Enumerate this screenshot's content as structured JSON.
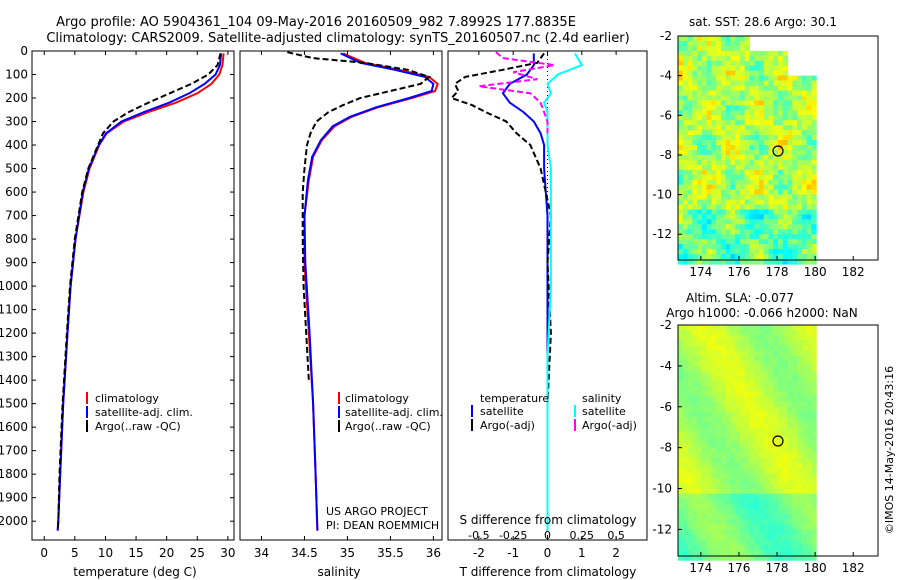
{
  "header": {
    "line1": "Argo profile: AO 5904361_104 09-May-2016 20160509_982 7.8992S 177.8835E",
    "line2": "Climatology: CARS2009. Satellite-adjusted climatology: synTS_20160507.nc (2.4d earlier)"
  },
  "watermark": "©IMOS 14-May-2016 20:43:16",
  "credits": {
    "line1": "US ARGO PROJECT",
    "line2": "PI: DEAN ROEMMICH"
  },
  "colors": {
    "climatology": "#ff0000",
    "satellite": "#0000ff",
    "argo": "#000000",
    "sal_satellite": "#00ffff",
    "sal_argo": "#ff00ff",
    "map_land": "#ffffff"
  },
  "chart_data": [
    {
      "type": "line",
      "xlabel": "temperature (deg C)",
      "xticks": [
        0,
        5,
        10,
        15,
        20,
        25,
        30
      ],
      "xlim": [
        -2,
        31
      ],
      "ylim": [
        2080,
        0
      ],
      "yticks": [
        0,
        100,
        200,
        300,
        400,
        500,
        600,
        700,
        800,
        900,
        1000,
        1100,
        1200,
        1300,
        1400,
        1500,
        1600,
        1700,
        1800,
        1900,
        2000
      ],
      "legend": [
        "climatology",
        "satellite-adj. clim.",
        "Argo(..raw -QC)"
      ],
      "series": [
        {
          "name": "climatology",
          "color": "#ff0000",
          "dash": false,
          "depth": [
            10,
            60,
            100,
            140,
            180,
            220,
            260,
            300,
            350,
            400,
            500,
            600,
            800,
            1000,
            1200,
            1500,
            1800,
            2000,
            2040
          ],
          "x": [
            29.3,
            29.1,
            28.6,
            27.3,
            25.0,
            21.5,
            17.0,
            13.0,
            10.2,
            9.0,
            7.4,
            6.4,
            5.1,
            4.3,
            3.8,
            3.1,
            2.6,
            2.3,
            2.2
          ]
        },
        {
          "name": "satellite-adj. clim.",
          "color": "#0000ff",
          "dash": false,
          "depth": [
            10,
            60,
            100,
            140,
            180,
            220,
            260,
            300,
            350,
            400,
            500,
            600,
            800,
            1000,
            1200,
            1500,
            1800,
            2000,
            2040
          ],
          "x": [
            28.9,
            28.7,
            28.0,
            26.2,
            23.7,
            20.4,
            16.3,
            12.6,
            10.1,
            8.9,
            7.3,
            6.3,
            5.1,
            4.3,
            3.8,
            3.1,
            2.6,
            2.3,
            2.2
          ]
        },
        {
          "name": "Argo(..raw -QC)",
          "color": "#000000",
          "dash": true,
          "depth": [
            10,
            60,
            100,
            140,
            180,
            220,
            260,
            300,
            350,
            400,
            500,
            600,
            800,
            1000,
            1200,
            1500,
            1800,
            2000,
            2040
          ],
          "x": [
            28.8,
            28.3,
            26.8,
            24.0,
            20.5,
            17.0,
            13.8,
            11.3,
            9.6,
            8.8,
            7.2,
            6.2,
            5.0,
            4.2,
            3.7,
            3.0,
            2.5,
            2.3,
            2.2
          ]
        }
      ]
    },
    {
      "type": "line",
      "xlabel": "salinity",
      "xticks": [
        34,
        34.5,
        35,
        35.5,
        36
      ],
      "xlim": [
        33.75,
        36.1
      ],
      "ylim": [
        2080,
        0
      ],
      "legend": [
        "climatology",
        "satellite-adj. clim.",
        "Argo(..raw -QC)"
      ],
      "series": [
        {
          "name": "climatology",
          "color": "#ff0000",
          "dash": false,
          "depth": [
            10,
            50,
            80,
            110,
            140,
            170,
            200,
            240,
            280,
            320,
            380,
            450,
            550,
            700,
            900,
            1200,
            1500,
            1800,
            2040
          ],
          "x": [
            34.95,
            35.2,
            35.6,
            35.95,
            36.05,
            36.02,
            35.75,
            35.35,
            35.05,
            34.85,
            34.7,
            34.6,
            34.55,
            34.5,
            34.5,
            34.55,
            34.6,
            34.63,
            34.65
          ]
        },
        {
          "name": "satellite-adj. clim.",
          "color": "#0000ff",
          "dash": false,
          "depth": [
            10,
            50,
            80,
            110,
            140,
            170,
            200,
            240,
            280,
            320,
            380,
            450,
            550,
            700,
            900,
            1200,
            1500,
            1800,
            2040
          ],
          "x": [
            34.92,
            35.15,
            35.55,
            35.9,
            36.0,
            35.98,
            35.72,
            35.33,
            35.03,
            34.83,
            34.69,
            34.59,
            34.54,
            34.5,
            34.51,
            34.56,
            34.6,
            34.63,
            34.65
          ]
        },
        {
          "name": "Argo(..raw -QC)",
          "color": "#000000",
          "dash": true,
          "depth": [
            5,
            30,
            50,
            80,
            110,
            140,
            170,
            200,
            230,
            260,
            300,
            350,
            400,
            500,
            600,
            800,
            1000,
            1200,
            1400
          ],
          "x": [
            34.3,
            34.6,
            35.2,
            35.7,
            35.95,
            35.85,
            35.5,
            35.15,
            34.95,
            34.78,
            34.64,
            34.57,
            34.53,
            34.5,
            34.48,
            34.48,
            34.49,
            34.52,
            34.55
          ]
        }
      ]
    },
    {
      "type": "line",
      "xlabel": "T difference from climatology",
      "top_xlabel": "S difference from climatology",
      "xticks": [
        -2,
        -1,
        0,
        1,
        2
      ],
      "top_xticks": [
        "-0.5",
        "-0.25",
        "0",
        "0.25",
        "0.5"
      ],
      "xlim": [
        -2.9,
        2.9
      ],
      "ylim": [
        2080,
        0
      ],
      "legend_headers": [
        "temperature",
        "salinity"
      ],
      "legend": [
        "satellite",
        "Argo(-adj)",
        "satellite",
        "Argo(-adj)"
      ],
      "series": [
        {
          "name": "satellite",
          "group": "temperature",
          "color": "#0000ff",
          "dash": false,
          "depth": [
            10,
            60,
            100,
            140,
            180,
            220,
            260,
            300,
            350,
            400,
            500,
            700,
            1000,
            1300,
            1600,
            1900,
            2040
          ],
          "x": [
            -0.4,
            -0.4,
            -0.6,
            -1.1,
            -1.3,
            -1.1,
            -0.7,
            -0.4,
            -0.2,
            -0.1,
            -0.1,
            0.0,
            0.0,
            0.0,
            0.0,
            0.0,
            0.0
          ]
        },
        {
          "name": "Argo(-adj)",
          "group": "temperature",
          "color": "#000000",
          "dash": true,
          "depth": [
            10,
            50,
            80,
            110,
            140,
            170,
            200,
            230,
            260,
            300,
            350,
            400,
            500,
            700,
            900,
            1200,
            1500,
            1800,
            2040
          ],
          "x": [
            -0.1,
            -0.3,
            -1.3,
            -2.4,
            -2.7,
            -2.6,
            -2.8,
            -2.2,
            -1.8,
            -1.2,
            -0.9,
            -0.5,
            -0.2,
            0.1,
            0.0,
            0.1,
            0.0,
            0.0,
            0.0
          ]
        },
        {
          "name": "satellite",
          "group": "salinity",
          "color": "#00ffff",
          "dash": false,
          "depth": [
            10,
            60,
            100,
            140,
            180,
            220,
            260,
            300,
            350,
            400,
            500,
            700,
            1000,
            1300,
            1600,
            1900,
            2040
          ],
          "x": [
            0.8,
            1.0,
            0.3,
            0.0,
            0.1,
            -0.1,
            0.0,
            0.0,
            0.0,
            0.0,
            0.1,
            0.1,
            0.1,
            0.0,
            0.0,
            0.0,
            0.0
          ]
        },
        {
          "name": "Argo(-adj)",
          "group": "salinity",
          "color": "#ff00ff",
          "dash": true,
          "depth": [
            5,
            30,
            60,
            90,
            120,
            150,
            180,
            220,
            260,
            300,
            350
          ],
          "x": [
            -1.5,
            -1.3,
            0.2,
            -1.0,
            -0.3,
            -2.0,
            -0.5,
            -0.2,
            -0.1,
            0.0,
            0.0
          ]
        }
      ]
    },
    {
      "type": "heatmap",
      "title": "sat. SST: 28.6 Argo: 30.1",
      "xticks": [
        174,
        176,
        178,
        180,
        182
      ],
      "yticks": [
        -2,
        -4,
        -6,
        -8,
        -10,
        -12
      ],
      "xlim": [
        172.8,
        183.3
      ],
      "ylim": [
        -13.3,
        -2
      ],
      "colormap": "jet",
      "argo_marker": {
        "lon": 177.88,
        "lat": -7.9
      }
    },
    {
      "type": "heatmap",
      "title_line1": "Altim. SLA: -0.077",
      "title_line2": "Argo h1000: -0.066 h2000: NaN",
      "xticks": [
        174,
        176,
        178,
        180,
        182
      ],
      "yticks": [
        -2,
        -4,
        -6,
        -8,
        -10,
        -12
      ],
      "xlim": [
        172.8,
        183.3
      ],
      "ylim": [
        -13.3,
        -2
      ],
      "colormap": "jet",
      "argo_marker": {
        "lon": 177.88,
        "lat": -7.9
      }
    }
  ]
}
